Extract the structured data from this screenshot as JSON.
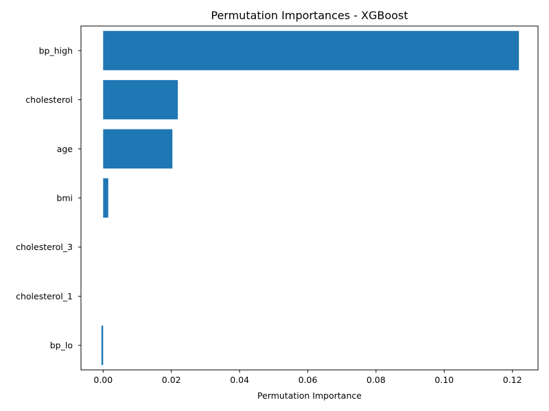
{
  "chart_data": {
    "type": "bar",
    "orientation": "horizontal",
    "title": "Permutation Importances - XGBoost",
    "xlabel": "Permutation Importance",
    "ylabel": "",
    "categories": [
      "bp_high",
      "cholesterol",
      "age",
      "bmi",
      "cholesterol_3",
      "cholesterol_1",
      "bp_lo"
    ],
    "values": [
      0.1219,
      0.0219,
      0.0203,
      0.0015,
      0.0,
      0.0,
      -0.0005
    ],
    "xlim": [
      -0.0065,
      0.1275
    ],
    "xticks": [
      0.0,
      0.02,
      0.04,
      0.06,
      0.08,
      0.1,
      0.12
    ],
    "xtick_labels": [
      "0.00",
      "0.02",
      "0.04",
      "0.06",
      "0.08",
      "0.10",
      "0.12"
    ],
    "bar_color": "#1f77b4",
    "grid": false,
    "legend": null
  }
}
